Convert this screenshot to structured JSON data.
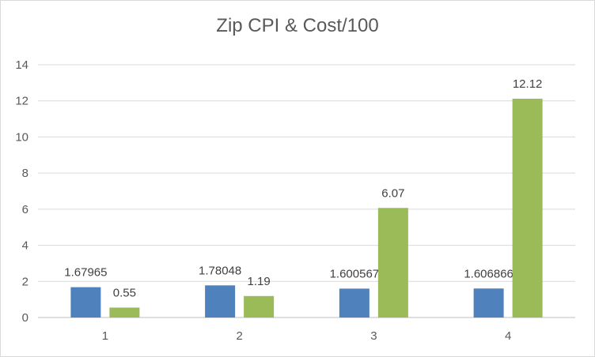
{
  "chart_data": {
    "type": "bar",
    "title": "Zip CPI & Cost/100",
    "xlabel": "",
    "ylabel": "",
    "categories": [
      "1",
      "2",
      "3",
      "4"
    ],
    "series": [
      {
        "values": [
          1.67965,
          1.78048,
          1.600567,
          1.606866
        ],
        "labels": [
          "1.67965",
          "1.78048",
          "1.600567",
          "1.606866"
        ],
        "color": "#4f81bd"
      },
      {
        "values": [
          0.55,
          1.19,
          6.07,
          12.12
        ],
        "labels": [
          "0.55",
          "1.19",
          "6.07",
          "12.12"
        ],
        "color": "#9bbb59"
      }
    ],
    "ylim": [
      0,
      14
    ],
    "yticks": [
      "0",
      "2",
      "4",
      "6",
      "8",
      "10",
      "12",
      "14"
    ],
    "grid": true,
    "legend": "none"
  }
}
